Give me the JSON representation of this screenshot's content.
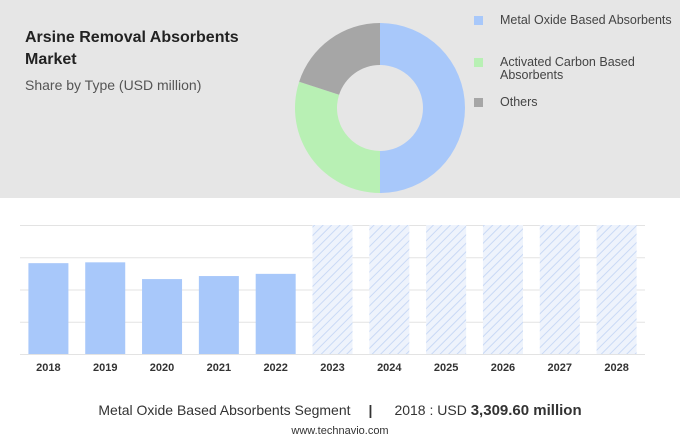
{
  "title": "Arsine Removal Absorbents Market",
  "subtitle": "Share by Type (USD million)",
  "chart_data": [
    {
      "type": "pie",
      "variant": "donut",
      "title": "Arsine Removal Absorbents Market",
      "subtitle": "Share by Type (USD million)",
      "labels": [
        "Metal Oxide Based Absorbents",
        "Activated Carbon Based Absorbents",
        "Others"
      ],
      "values": [
        50,
        30,
        20
      ],
      "colors": [
        "#a8c8fa",
        "#b8f0b4",
        "#a6a6a6"
      ],
      "legend_position": "right"
    },
    {
      "type": "bar",
      "categories": [
        "2018",
        "2019",
        "2020",
        "2021",
        "2022",
        "2023",
        "2024",
        "2025",
        "2026",
        "2027",
        "2028"
      ],
      "values": [
        3309.6,
        3340,
        2730,
        2840,
        2920,
        null,
        null,
        null,
        null,
        null,
        null
      ],
      "forecast_categories": [
        "2023",
        "2024",
        "2025",
        "2026",
        "2027",
        "2028"
      ],
      "ylim": [
        0,
        4700
      ],
      "grid": true,
      "bar_color": "#a8c8fa",
      "forecast_color": "#c9d9f5",
      "xlabel": "",
      "ylabel": ""
    }
  ],
  "footer": {
    "segment": "Metal Oxide Based Absorbents Segment",
    "separator": "|",
    "year_label": "2018 : USD",
    "value": "3,309.60 million"
  },
  "source": "www.technavio.com"
}
